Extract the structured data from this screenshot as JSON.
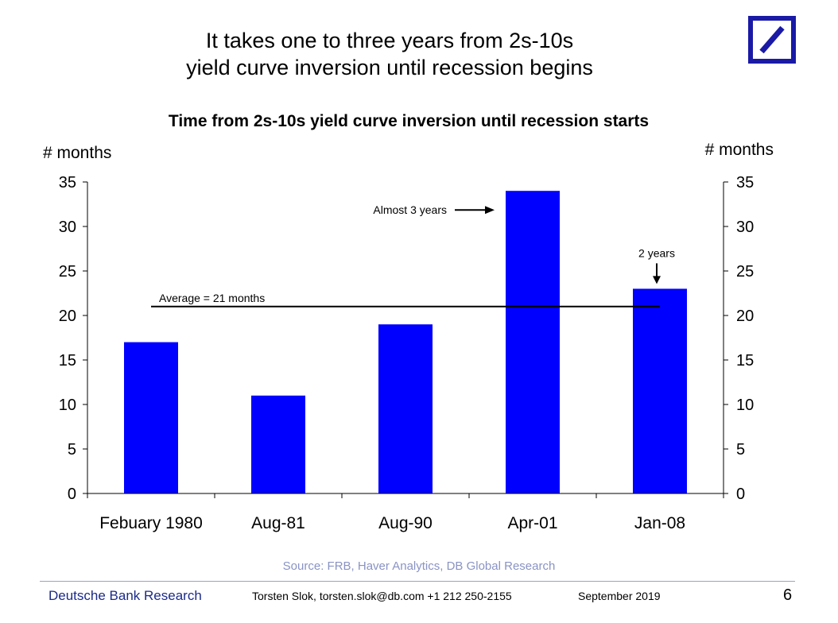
{
  "slide": {
    "title_line1": "It takes one to three years from 2s-10s",
    "title_line2": "yield curve inversion until recession begins"
  },
  "logo": {
    "icon": "deutsche-bank-logo-icon",
    "color": "#1a1aa6"
  },
  "chart_data": {
    "type": "bar",
    "title": "Time from 2s-10s yield curve inversion until recession starts",
    "ylabel_left": "# months",
    "ylabel_right": "# months",
    "categories": [
      "Febuary 1980",
      "Aug-81",
      "Aug-90",
      "Apr-01",
      "Jan-08"
    ],
    "values": [
      17,
      11,
      19,
      34,
      23
    ],
    "ylim": [
      0,
      35
    ],
    "yticks": [
      0,
      5,
      10,
      15,
      20,
      25,
      30,
      35
    ],
    "bar_color": "#0000ff",
    "average": {
      "value": 21,
      "label": "Average = 21 months"
    },
    "annotations": [
      {
        "text": "Almost 3 years",
        "target_category": "Apr-01"
      },
      {
        "text": "2 years",
        "target_category": "Jan-08"
      }
    ],
    "grid": false
  },
  "source": "Source: FRB, Haver Analytics, DB Global Research",
  "footer": {
    "brand": "Deutsche Bank Research",
    "author": "Torsten Slok, torsten.slok@db.com  +1 212 250-2155",
    "date": "September 2019",
    "page": "6"
  }
}
